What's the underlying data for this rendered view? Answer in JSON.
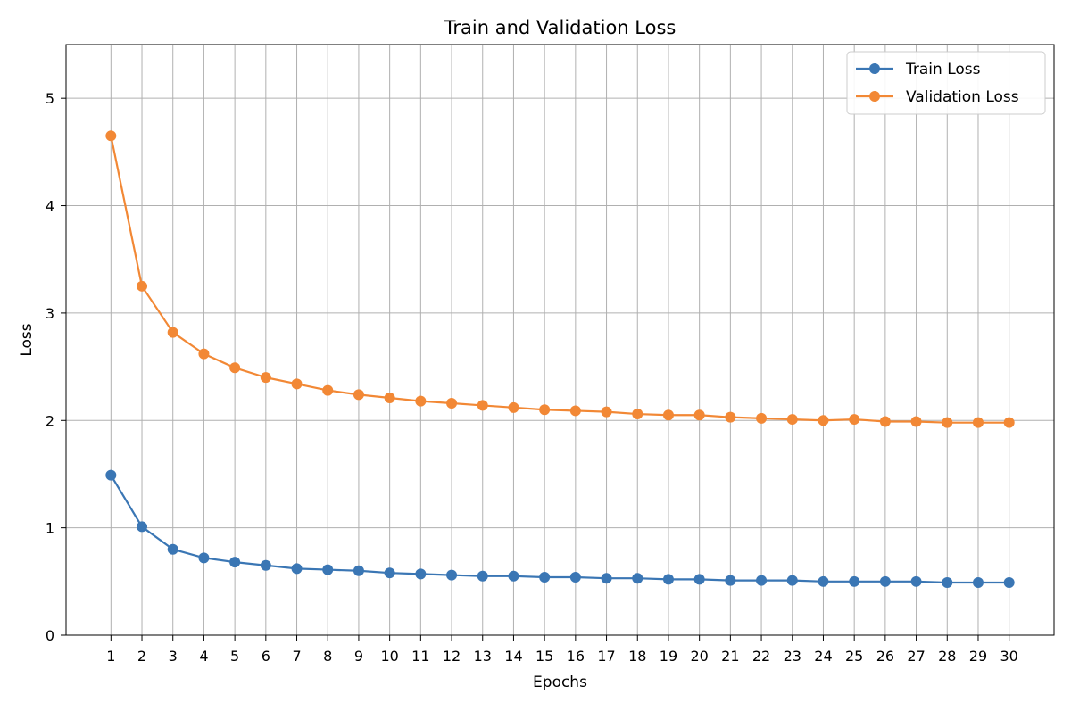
{
  "chart_data": {
    "type": "line",
    "title": "Train and Validation Loss",
    "xlabel": "Epochs",
    "ylabel": "Loss",
    "x": [
      1,
      2,
      3,
      4,
      5,
      6,
      7,
      8,
      9,
      10,
      11,
      12,
      13,
      14,
      15,
      16,
      17,
      18,
      19,
      20,
      21,
      22,
      23,
      24,
      25,
      26,
      27,
      28,
      29,
      30
    ],
    "ylim": [
      0,
      5.5
    ],
    "yticks": [
      0,
      1,
      2,
      3,
      4,
      5
    ],
    "grid": true,
    "legend_position": "top-right",
    "series": [
      {
        "name": "Train Loss",
        "color": "#3a76b4",
        "marker": "circle",
        "values": [
          1.49,
          1.01,
          0.8,
          0.72,
          0.68,
          0.65,
          0.62,
          0.61,
          0.6,
          0.58,
          0.57,
          0.56,
          0.55,
          0.55,
          0.54,
          0.54,
          0.53,
          0.53,
          0.52,
          0.52,
          0.51,
          0.51,
          0.51,
          0.5,
          0.5,
          0.5,
          0.5,
          0.49,
          0.49,
          0.49
        ]
      },
      {
        "name": "Validation Loss",
        "color": "#f28835",
        "marker": "circle",
        "values": [
          4.65,
          3.25,
          2.82,
          2.62,
          2.49,
          2.4,
          2.34,
          2.28,
          2.24,
          2.21,
          2.18,
          2.16,
          2.14,
          2.12,
          2.1,
          2.09,
          2.08,
          2.06,
          2.05,
          2.05,
          2.03,
          2.02,
          2.01,
          2.0,
          2.01,
          1.99,
          1.99,
          1.98,
          1.98,
          1.98
        ]
      }
    ]
  }
}
